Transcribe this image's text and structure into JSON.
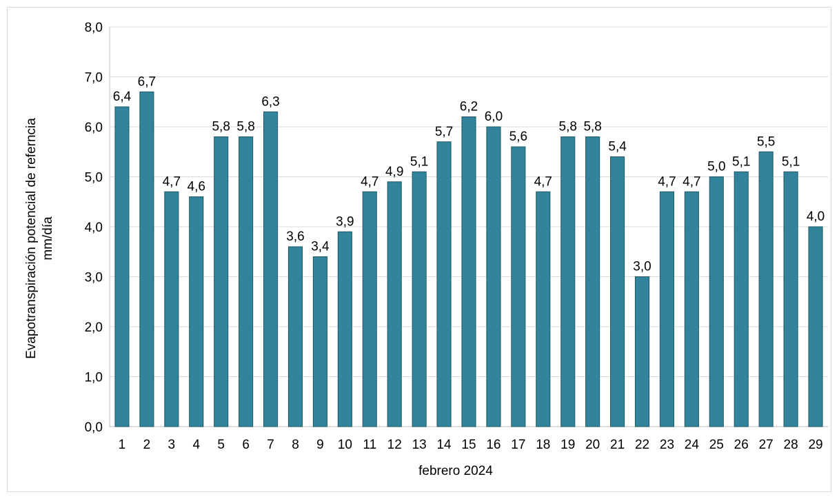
{
  "chart_data": {
    "type": "bar",
    "categories": [
      "1",
      "2",
      "3",
      "4",
      "5",
      "6",
      "7",
      "8",
      "9",
      "10",
      "11",
      "12",
      "13",
      "14",
      "15",
      "16",
      "17",
      "18",
      "19",
      "20",
      "21",
      "22",
      "23",
      "24",
      "25",
      "26",
      "27",
      "28",
      "29"
    ],
    "values": [
      6.4,
      6.7,
      4.7,
      4.6,
      5.8,
      5.8,
      6.3,
      3.6,
      3.4,
      3.9,
      4.7,
      4.9,
      5.1,
      5.7,
      6.2,
      6.0,
      5.6,
      4.7,
      5.8,
      5.8,
      5.4,
      3.0,
      4.7,
      4.7,
      5.0,
      5.1,
      5.5,
      5.1,
      4.0
    ],
    "value_labels": [
      "6,4",
      "6,7",
      "4,7",
      "4,6",
      "5,8",
      "5,8",
      "6,3",
      "3,6",
      "3,4",
      "3,9",
      "4,7",
      "4,9",
      "5,1",
      "5,7",
      "6,2",
      "6,0",
      "5,6",
      "4,7",
      "5,8",
      "5,8",
      "5,4",
      "3,0",
      "4,7",
      "4,7",
      "5,0",
      "5,1",
      "5,5",
      "5,1",
      "4,0"
    ],
    "yticks": [
      0,
      1,
      2,
      3,
      4,
      5,
      6,
      7,
      8
    ],
    "ytick_labels": [
      "0,0",
      "1,0",
      "2,0",
      "3,0",
      "4,0",
      "5,0",
      "6,0",
      "7,0",
      "8,0"
    ],
    "ylim": [
      0,
      8
    ],
    "xlabel": "febrero 2024",
    "ylabel": [
      "Evapotranspiración potencial de referncia",
      "mm/día"
    ],
    "grid": true,
    "colors": {
      "bar": "#31849b",
      "bar_edge": "#205867",
      "grid": "#d9d9d9",
      "axis": "#bfbfbf"
    }
  }
}
